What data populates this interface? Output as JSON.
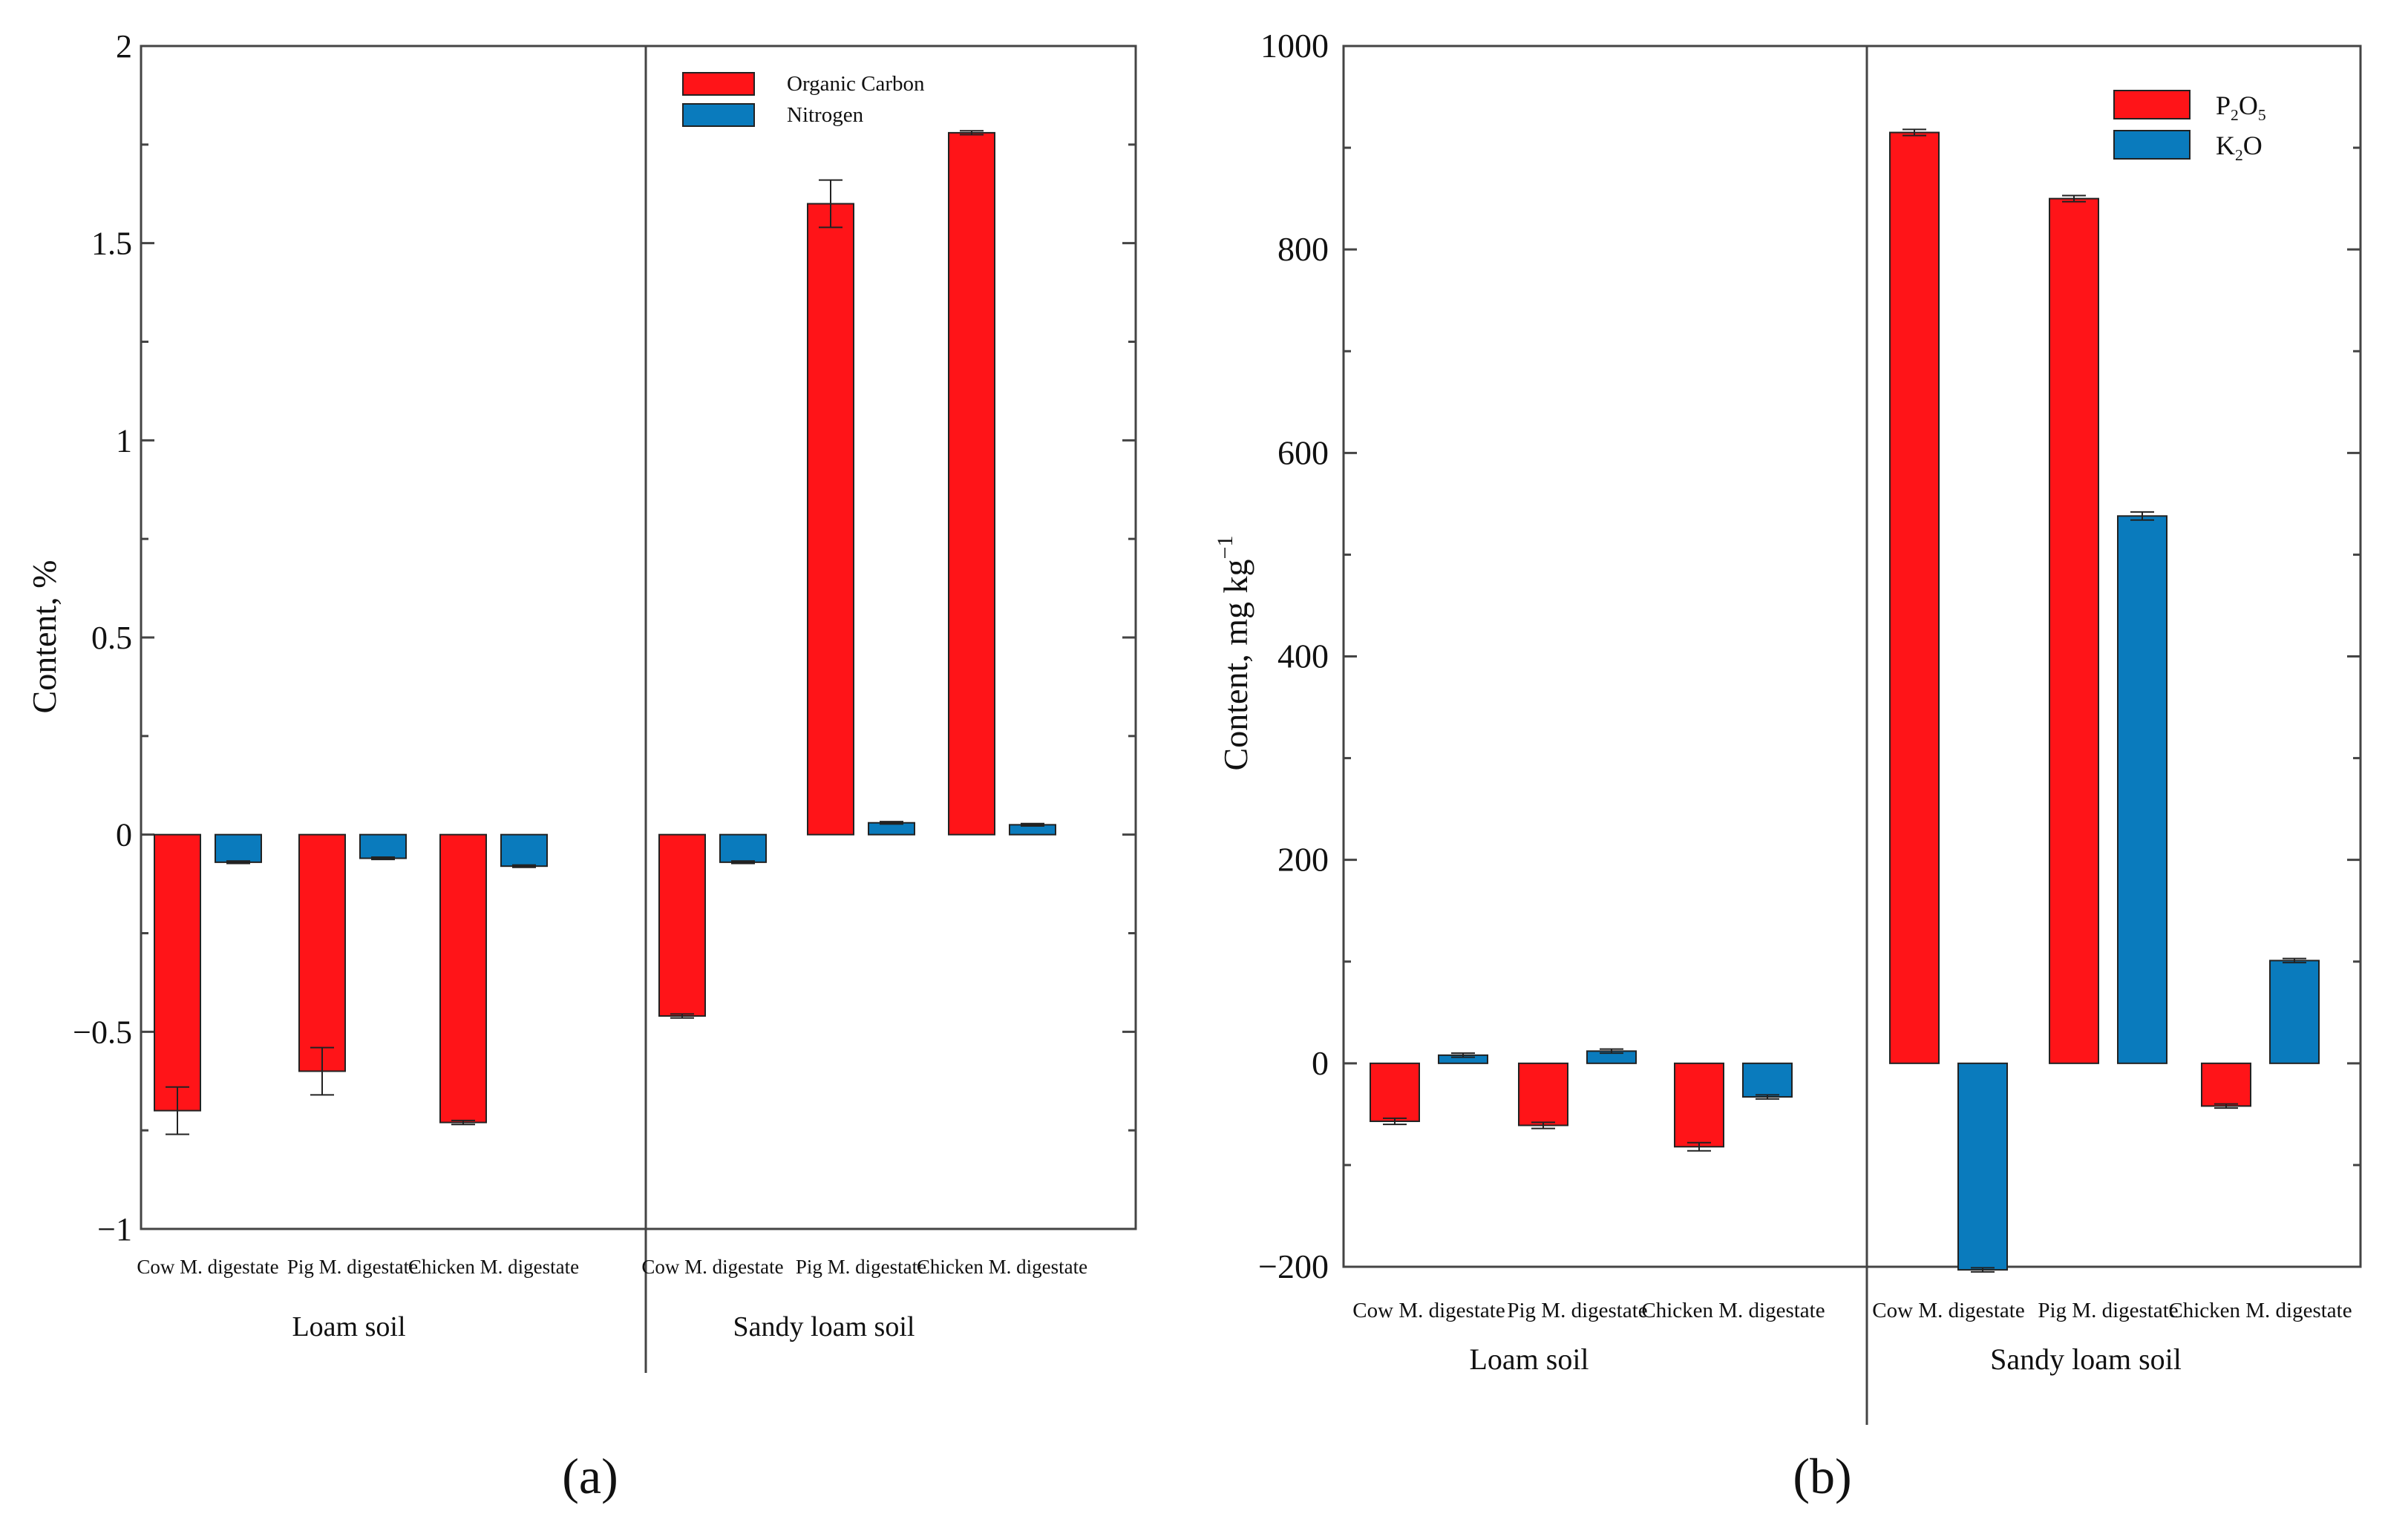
{
  "chart_data": [
    {
      "panel": "a",
      "panel_label": "(a)",
      "type": "bar",
      "title": "",
      "ylabel": "Content, %",
      "ylim": [
        -1,
        2
      ],
      "yticks": [
        -1,
        -0.5,
        0,
        0.5,
        1,
        1.5,
        2
      ],
      "ytick_labels": [
        "−1",
        "−0.5",
        "0",
        "0.5",
        "1",
        "1.5",
        "2"
      ],
      "groups": [
        {
          "name": "Loam soil",
          "categories": [
            "Cow M. digestate",
            "Pig M. digestate",
            "Chicken M. digestate"
          ]
        },
        {
          "name": "Sandy loam soil",
          "categories": [
            "Cow M. digestate",
            "Pig M. digestate",
            "Chicken M. digestate"
          ]
        }
      ],
      "series": [
        {
          "name": "Organic Carbon",
          "color": "#ff1418",
          "values": [
            -0.7,
            -0.6,
            -0.73,
            -0.46,
            1.6,
            1.78
          ],
          "errors": [
            0.06,
            0.06,
            0.005,
            0.005,
            0.06,
            0.005
          ]
        },
        {
          "name": "Nitrogen",
          "color": "#0a7bbd",
          "values": [
            -0.07,
            -0.06,
            -0.08,
            -0.07,
            0.03,
            0.025
          ],
          "errors": [
            0.003,
            0.003,
            0.003,
            0.003,
            0.003,
            0.003
          ]
        }
      ],
      "legend": [
        {
          "text": "Organic Carbon",
          "sub": "",
          "rest": ""
        },
        {
          "text": "Nitrogen",
          "sub": "",
          "rest": ""
        }
      ],
      "legend_position": "top-right"
    },
    {
      "panel": "b",
      "panel_label": "(b)",
      "type": "bar",
      "title": "",
      "ylabel": "Content, mg kg",
      "ylabel_sup": "−1",
      "ylim": [
        -200,
        1000
      ],
      "yticks": [
        -200,
        0,
        200,
        400,
        600,
        800,
        1000
      ],
      "ytick_labels": [
        "−200",
        "0",
        "200",
        "400",
        "600",
        "800",
        "1000"
      ],
      "groups": [
        {
          "name": "Loam soil",
          "categories": [
            "Cow M. digestate",
            "Pig M. digestate",
            "Chicken M. digestate"
          ]
        },
        {
          "name": "Sandy  loam soil",
          "categories": [
            "Cow M. digestate",
            "Pig M. digestate",
            "Chicken M. digestate"
          ]
        }
      ],
      "series": [
        {
          "name": "P2O5",
          "color": "#ff1418",
          "values": [
            -57,
            -61,
            -82,
            915,
            850,
            -42
          ],
          "errors": [
            3,
            3,
            4,
            3,
            3,
            2
          ]
        },
        {
          "name": "K2O",
          "color": "#0a7bbd",
          "values": [
            8,
            12,
            -33,
            -203,
            538,
            101
          ],
          "errors": [
            2,
            2,
            2,
            2,
            4,
            2
          ]
        }
      ],
      "legend": [
        {
          "text": "P",
          "sub": "2",
          "rest": "O",
          "sub2": "5"
        },
        {
          "text": "K",
          "sub": "2",
          "rest": "O",
          "sub2": ""
        }
      ],
      "legend_position": "top-right"
    }
  ]
}
